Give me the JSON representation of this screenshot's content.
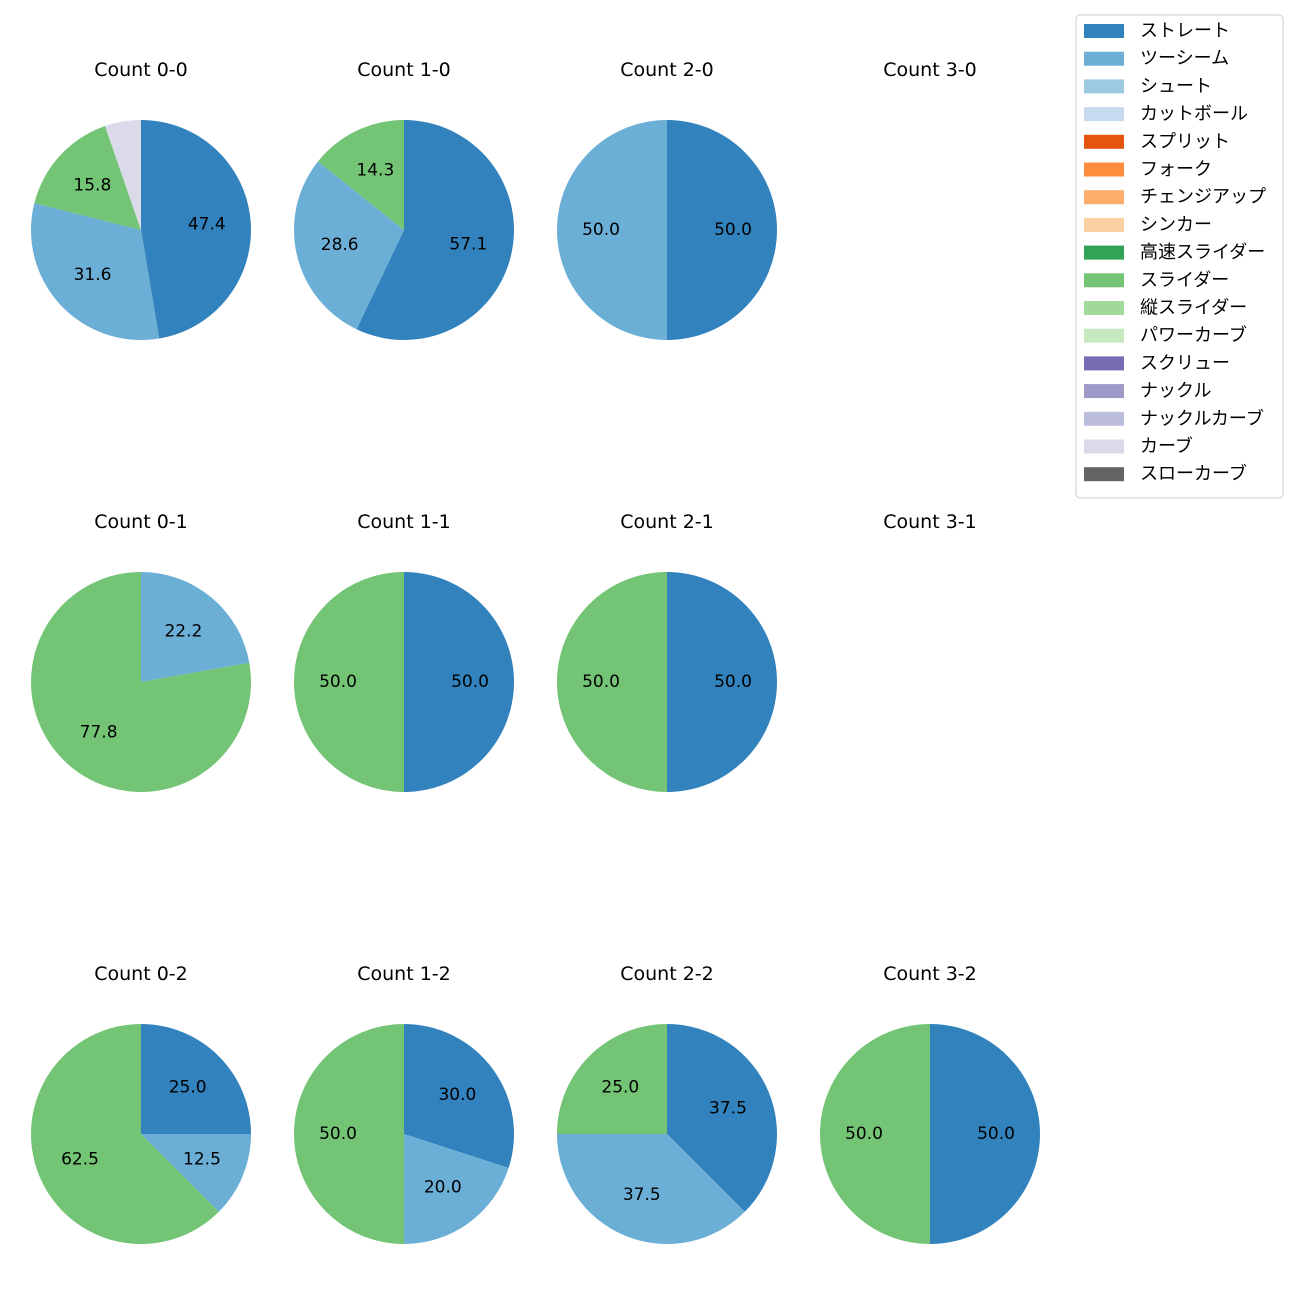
{
  "chart_data": {
    "type": "pie",
    "pitch_types": [
      {
        "name": "ストレート",
        "color": "#3182bd"
      },
      {
        "name": "ツーシーム",
        "color": "#6baed6"
      },
      {
        "name": "シュート",
        "color": "#9ecae1"
      },
      {
        "name": "カットボール",
        "color": "#c6dbef"
      },
      {
        "name": "スプリット",
        "color": "#e6550d"
      },
      {
        "name": "フォーク",
        "color": "#fd8d3c"
      },
      {
        "name": "チェンジアップ",
        "color": "#fdae6b"
      },
      {
        "name": "シンカー",
        "color": "#fdd0a2"
      },
      {
        "name": "高速スライダー",
        "color": "#31a354"
      },
      {
        "name": "スライダー",
        "color": "#74c476"
      },
      {
        "name": "縦スライダー",
        "color": "#a1d99b"
      },
      {
        "name": "パワーカーブ",
        "color": "#c7e9c0"
      },
      {
        "name": "スクリュー",
        "color": "#756bb1"
      },
      {
        "name": "ナックル",
        "color": "#9e9ac8"
      },
      {
        "name": "ナックルカーブ",
        "color": "#bcbddc"
      },
      {
        "name": "カーブ",
        "color": "#dadaeb"
      },
      {
        "name": "スローカーブ",
        "color": "#636363"
      }
    ],
    "charts": [
      {
        "title": "Count 0-0",
        "slices": [
          {
            "type": "ストレート",
            "value": 47.4
          },
          {
            "type": "ツーシーム",
            "value": 31.6
          },
          {
            "type": "スライダー",
            "value": 15.8
          },
          {
            "type": "カーブ",
            "value": 5.3,
            "label": ""
          }
        ]
      },
      {
        "title": "Count 1-0",
        "slices": [
          {
            "type": "ストレート",
            "value": 57.1
          },
          {
            "type": "ツーシーム",
            "value": 28.6
          },
          {
            "type": "スライダー",
            "value": 14.3
          }
        ]
      },
      {
        "title": "Count 2-0",
        "slices": [
          {
            "type": "ストレート",
            "value": 50.0
          },
          {
            "type": "ツーシーム",
            "value": 50.0
          }
        ]
      },
      {
        "title": "Count 3-0",
        "slices": []
      },
      {
        "title": "Count 0-1",
        "slices": [
          {
            "type": "ツーシーム",
            "value": 22.2
          },
          {
            "type": "スライダー",
            "value": 77.8
          }
        ]
      },
      {
        "title": "Count 1-1",
        "slices": [
          {
            "type": "ストレート",
            "value": 50.0
          },
          {
            "type": "スライダー",
            "value": 50.0
          }
        ]
      },
      {
        "title": "Count 2-1",
        "slices": [
          {
            "type": "ストレート",
            "value": 50.0
          },
          {
            "type": "スライダー",
            "value": 50.0
          }
        ]
      },
      {
        "title": "Count 3-1",
        "slices": []
      },
      {
        "title": "Count 0-2",
        "slices": [
          {
            "type": "ストレート",
            "value": 25.0
          },
          {
            "type": "ツーシーム",
            "value": 12.5
          },
          {
            "type": "スライダー",
            "value": 62.5
          }
        ]
      },
      {
        "title": "Count 1-2",
        "slices": [
          {
            "type": "ストレート",
            "value": 30.0
          },
          {
            "type": "ツーシーム",
            "value": 20.0
          },
          {
            "type": "スライダー",
            "value": 50.0
          }
        ]
      },
      {
        "title": "Count 2-2",
        "slices": [
          {
            "type": "ストレート",
            "value": 37.5
          },
          {
            "type": "ツーシーム",
            "value": 37.5
          },
          {
            "type": "スライダー",
            "value": 25.0
          }
        ]
      },
      {
        "title": "Count 3-2",
        "slices": [
          {
            "type": "ストレート",
            "value": 50.0
          },
          {
            "type": "スライダー",
            "value": 50.0
          }
        ]
      }
    ],
    "legend_position": "top-right"
  }
}
